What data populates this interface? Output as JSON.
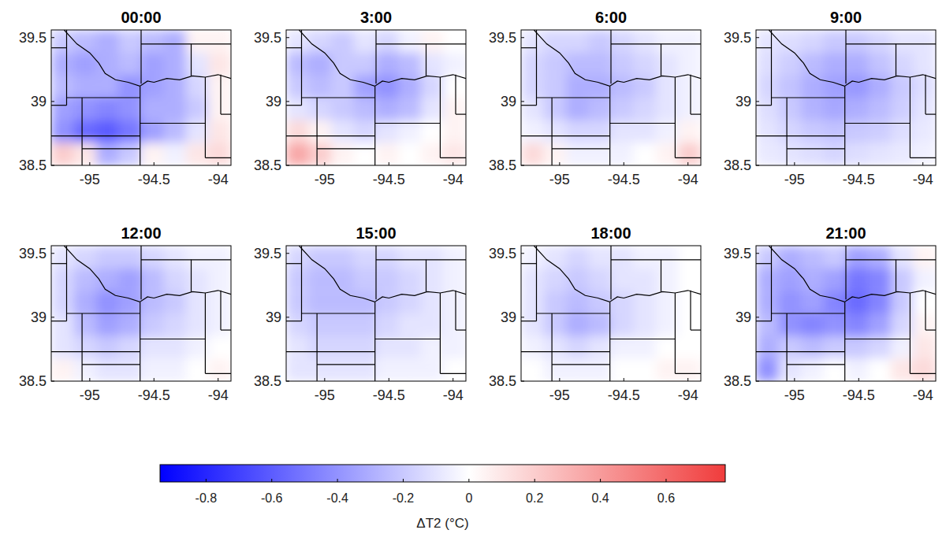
{
  "chart_data": [
    {
      "type": "heatmap",
      "title": "00:00",
      "xlim": [
        -95.3,
        -93.9
      ],
      "ylim": [
        38.5,
        39.56
      ],
      "xticks": [
        -95,
        -94.5,
        -94
      ],
      "yticks": [
        38.5,
        39,
        39.5
      ],
      "cells": [
        [
          -0.2,
          -0.25,
          -0.3,
          -0.2,
          -0.25,
          -0.3,
          0.05,
          0.05
        ],
        [
          -0.3,
          -0.35,
          -0.3,
          -0.25,
          -0.35,
          -0.3,
          -0.1,
          0.1
        ],
        [
          -0.25,
          -0.3,
          -0.3,
          -0.4,
          -0.35,
          -0.3,
          -0.15,
          0.05
        ],
        [
          -0.35,
          -0.4,
          -0.45,
          -0.4,
          -0.3,
          -0.3,
          -0.2,
          0.05
        ],
        [
          -0.4,
          -0.55,
          -0.6,
          -0.5,
          -0.35,
          -0.25,
          -0.1,
          0.1
        ],
        [
          0.2,
          0.1,
          -0.3,
          -0.2,
          0.05,
          -0.05,
          0.1,
          0.15
        ]
      ]
    },
    {
      "type": "heatmap",
      "title": "3:00",
      "xlim": [
        -95.3,
        -93.9
      ],
      "ylim": [
        38.5,
        39.56
      ],
      "xticks": [
        -95,
        -94.5,
        -94
      ],
      "yticks": [
        38.5,
        39,
        39.5
      ],
      "cells": [
        [
          -0.1,
          -0.15,
          -0.2,
          -0.1,
          -0.15,
          -0.05,
          0.05,
          0
        ],
        [
          -0.25,
          -0.3,
          -0.2,
          -0.2,
          -0.3,
          -0.25,
          -0.1,
          -0.05
        ],
        [
          -0.2,
          -0.25,
          -0.2,
          -0.35,
          -0.4,
          -0.3,
          -0.15,
          0
        ],
        [
          -0.1,
          -0.15,
          -0.2,
          -0.25,
          -0.3,
          -0.25,
          -0.1,
          0.05
        ],
        [
          0.15,
          0.05,
          -0.1,
          -0.15,
          -0.1,
          -0.05,
          0,
          0.05
        ],
        [
          0.35,
          0.2,
          0.05,
          0,
          0.05,
          0,
          0.05,
          0.1
        ]
      ]
    },
    {
      "type": "heatmap",
      "title": "6:00",
      "xlim": [
        -95.3,
        -93.9
      ],
      "ylim": [
        38.5,
        39.56
      ],
      "xticks": [
        -95,
        -94.5,
        -94
      ],
      "yticks": [
        38.5,
        39,
        39.5
      ],
      "cells": [
        [
          -0.1,
          -0.15,
          -0.15,
          -0.2,
          -0.15,
          -0.1,
          -0.05,
          -0.05
        ],
        [
          -0.15,
          -0.2,
          -0.25,
          -0.25,
          -0.2,
          -0.15,
          -0.1,
          -0.05
        ],
        [
          -0.15,
          -0.2,
          -0.3,
          -0.3,
          -0.25,
          -0.2,
          -0.1,
          -0.05
        ],
        [
          -0.1,
          -0.2,
          -0.3,
          -0.25,
          -0.2,
          -0.15,
          -0.1,
          -0.05
        ],
        [
          -0.05,
          -0.1,
          -0.15,
          -0.15,
          -0.1,
          -0.1,
          -0.05,
          0.05
        ],
        [
          0.15,
          0.05,
          -0.05,
          -0.05,
          -0.05,
          0,
          0.05,
          0.2
        ]
      ]
    },
    {
      "type": "heatmap",
      "title": "9:00",
      "xlim": [
        -95.3,
        -93.9
      ],
      "ylim": [
        38.5,
        39.56
      ],
      "xticks": [
        -95,
        -94.5,
        -94
      ],
      "yticks": [
        38.5,
        39,
        39.5
      ],
      "cells": [
        [
          -0.1,
          -0.12,
          -0.15,
          -0.2,
          -0.2,
          -0.15,
          -0.1,
          -0.1
        ],
        [
          -0.12,
          -0.18,
          -0.25,
          -0.3,
          -0.3,
          -0.22,
          -0.15,
          -0.1
        ],
        [
          -0.15,
          -0.22,
          -0.3,
          -0.35,
          -0.38,
          -0.3,
          -0.2,
          -0.12
        ],
        [
          -0.12,
          -0.2,
          -0.28,
          -0.32,
          -0.3,
          -0.25,
          -0.18,
          -0.1
        ],
        [
          -0.1,
          -0.15,
          -0.2,
          -0.22,
          -0.2,
          -0.18,
          -0.12,
          -0.08
        ],
        [
          -0.08,
          -0.1,
          -0.12,
          -0.15,
          -0.12,
          -0.1,
          -0.08,
          -0.05
        ]
      ]
    },
    {
      "type": "heatmap",
      "title": "12:00",
      "xlim": [
        -95.3,
        -93.9
      ],
      "ylim": [
        38.5,
        39.56
      ],
      "xticks": [
        -95,
        -94.5,
        -94
      ],
      "yticks": [
        38.5,
        39,
        39.5
      ],
      "cells": [
        [
          -0.1,
          -0.15,
          -0.2,
          -0.2,
          -0.15,
          -0.1,
          -0.05,
          -0.05
        ],
        [
          -0.15,
          -0.25,
          -0.3,
          -0.35,
          -0.25,
          -0.15,
          -0.1,
          -0.05
        ],
        [
          -0.15,
          -0.3,
          -0.4,
          -0.35,
          -0.25,
          -0.2,
          -0.1,
          -0.05
        ],
        [
          -0.1,
          -0.25,
          -0.35,
          -0.3,
          -0.2,
          -0.15,
          -0.1,
          -0.05
        ],
        [
          -0.1,
          -0.15,
          -0.2,
          -0.15,
          -0.1,
          -0.1,
          -0.05,
          0
        ],
        [
          0.05,
          -0.05,
          -0.1,
          -0.1,
          -0.05,
          -0.05,
          0,
          0.05
        ]
      ]
    },
    {
      "type": "heatmap",
      "title": "15:00",
      "xlim": [
        -95.3,
        -93.9
      ],
      "ylim": [
        38.5,
        39.56
      ],
      "xticks": [
        -95,
        -94.5,
        -94
      ],
      "yticks": [
        38.5,
        39,
        39.5
      ],
      "cells": [
        [
          -0.15,
          -0.2,
          -0.2,
          -0.15,
          -0.15,
          -0.1,
          -0.1,
          -0.05
        ],
        [
          -0.2,
          -0.25,
          -0.25,
          -0.2,
          -0.2,
          -0.15,
          -0.1,
          -0.05
        ],
        [
          -0.2,
          -0.25,
          -0.25,
          -0.25,
          -0.2,
          -0.15,
          -0.1,
          -0.05
        ],
        [
          -0.15,
          -0.2,
          -0.2,
          -0.2,
          -0.15,
          -0.1,
          -0.1,
          -0.05
        ],
        [
          -0.1,
          -0.15,
          -0.15,
          -0.15,
          -0.1,
          -0.1,
          -0.05,
          -0.05
        ],
        [
          -0.1,
          -0.1,
          -0.1,
          -0.1,
          -0.05,
          -0.05,
          -0.05,
          0
        ]
      ]
    },
    {
      "type": "heatmap",
      "title": "18:00",
      "xlim": [
        -95.3,
        -93.9
      ],
      "ylim": [
        38.5,
        39.56
      ],
      "xticks": [
        -95,
        -94.5,
        -94
      ],
      "yticks": [
        38.5,
        39,
        39.5
      ],
      "cells": [
        [
          -0.05,
          -0.1,
          -0.15,
          -0.1,
          -0.1,
          -0.05,
          -0.05,
          0
        ],
        [
          -0.1,
          -0.15,
          -0.2,
          -0.15,
          -0.1,
          -0.1,
          -0.05,
          0
        ],
        [
          -0.1,
          -0.2,
          -0.25,
          -0.2,
          -0.15,
          -0.1,
          -0.05,
          0
        ],
        [
          -0.1,
          -0.2,
          -0.3,
          -0.25,
          -0.15,
          -0.1,
          -0.05,
          0
        ],
        [
          -0.05,
          -0.1,
          -0.15,
          -0.1,
          -0.05,
          -0.05,
          0,
          0
        ],
        [
          0,
          -0.05,
          -0.05,
          -0.05,
          0,
          0,
          0.05,
          0.05
        ]
      ]
    },
    {
      "type": "heatmap",
      "title": "21:00",
      "xlim": [
        -95.3,
        -93.9
      ],
      "ylim": [
        38.5,
        39.56
      ],
      "xticks": [
        -95,
        -94.5,
        -94
      ],
      "yticks": [
        38.5,
        39,
        39.5
      ],
      "cells": [
        [
          -0.2,
          -0.3,
          -0.25,
          -0.2,
          -0.35,
          -0.3,
          -0.1,
          0.05
        ],
        [
          -0.3,
          -0.35,
          -0.3,
          -0.35,
          -0.5,
          -0.45,
          -0.2,
          -0.05
        ],
        [
          -0.3,
          -0.4,
          -0.35,
          -0.45,
          -0.55,
          -0.45,
          -0.2,
          0
        ],
        [
          -0.25,
          -0.4,
          -0.45,
          -0.4,
          -0.45,
          -0.35,
          -0.15,
          0.05
        ],
        [
          -0.3,
          -0.2,
          -0.25,
          -0.2,
          -0.2,
          -0.15,
          -0.05,
          0.1
        ],
        [
          -0.4,
          -0.1,
          -0.05,
          0,
          -0.05,
          0,
          0.1,
          0.15
        ]
      ]
    }
  ],
  "colorbar": {
    "label": "ΔT2 (°C)",
    "range": [
      -0.94,
      0.78
    ],
    "ticks": [
      -0.8,
      -0.6,
      -0.4,
      -0.2,
      0,
      0.2,
      0.4,
      0.6
    ],
    "colors": [
      "#0000ff",
      "#ffffff",
      "#f03c3c"
    ]
  }
}
